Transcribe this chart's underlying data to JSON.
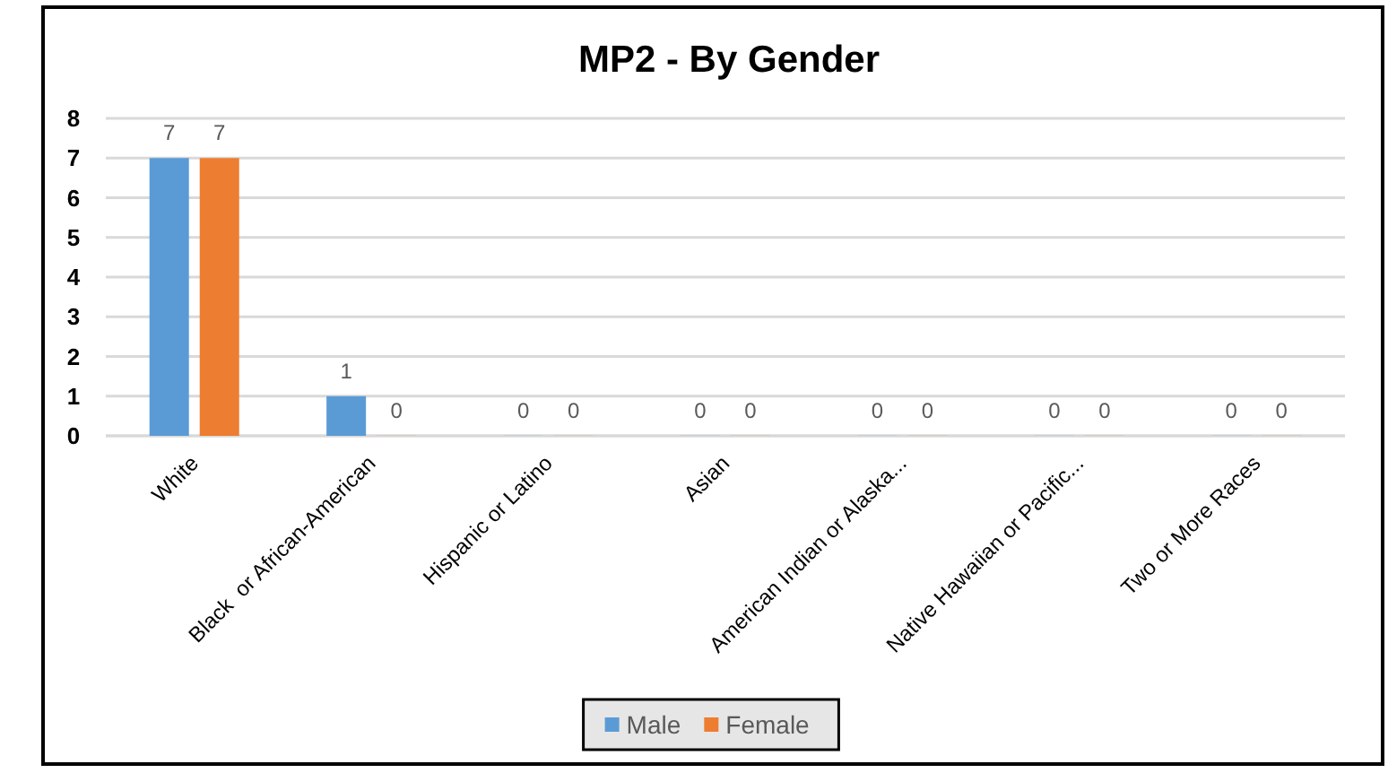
{
  "chart_data": {
    "type": "bar",
    "title": "MP2 - By Gender",
    "categories": [
      "White",
      "Black  or African-American",
      "Hispanic or Latino",
      "Asian",
      "American Indian or Alaska...",
      "Native Hawaiian or Pacific...",
      "Two or More Races"
    ],
    "series": [
      {
        "name": "Male",
        "color": "#5b9bd5",
        "values": [
          7,
          1,
          0,
          0,
          0,
          0,
          0
        ]
      },
      {
        "name": "Female",
        "color": "#ed7d31",
        "values": [
          7,
          0,
          0,
          0,
          0,
          0,
          0
        ]
      }
    ],
    "ylim": [
      0,
      8
    ],
    "yticks": [
      0,
      1,
      2,
      3,
      4,
      5,
      6,
      7,
      8
    ],
    "grid": "y",
    "legend": "bottom",
    "data_labels": true
  }
}
